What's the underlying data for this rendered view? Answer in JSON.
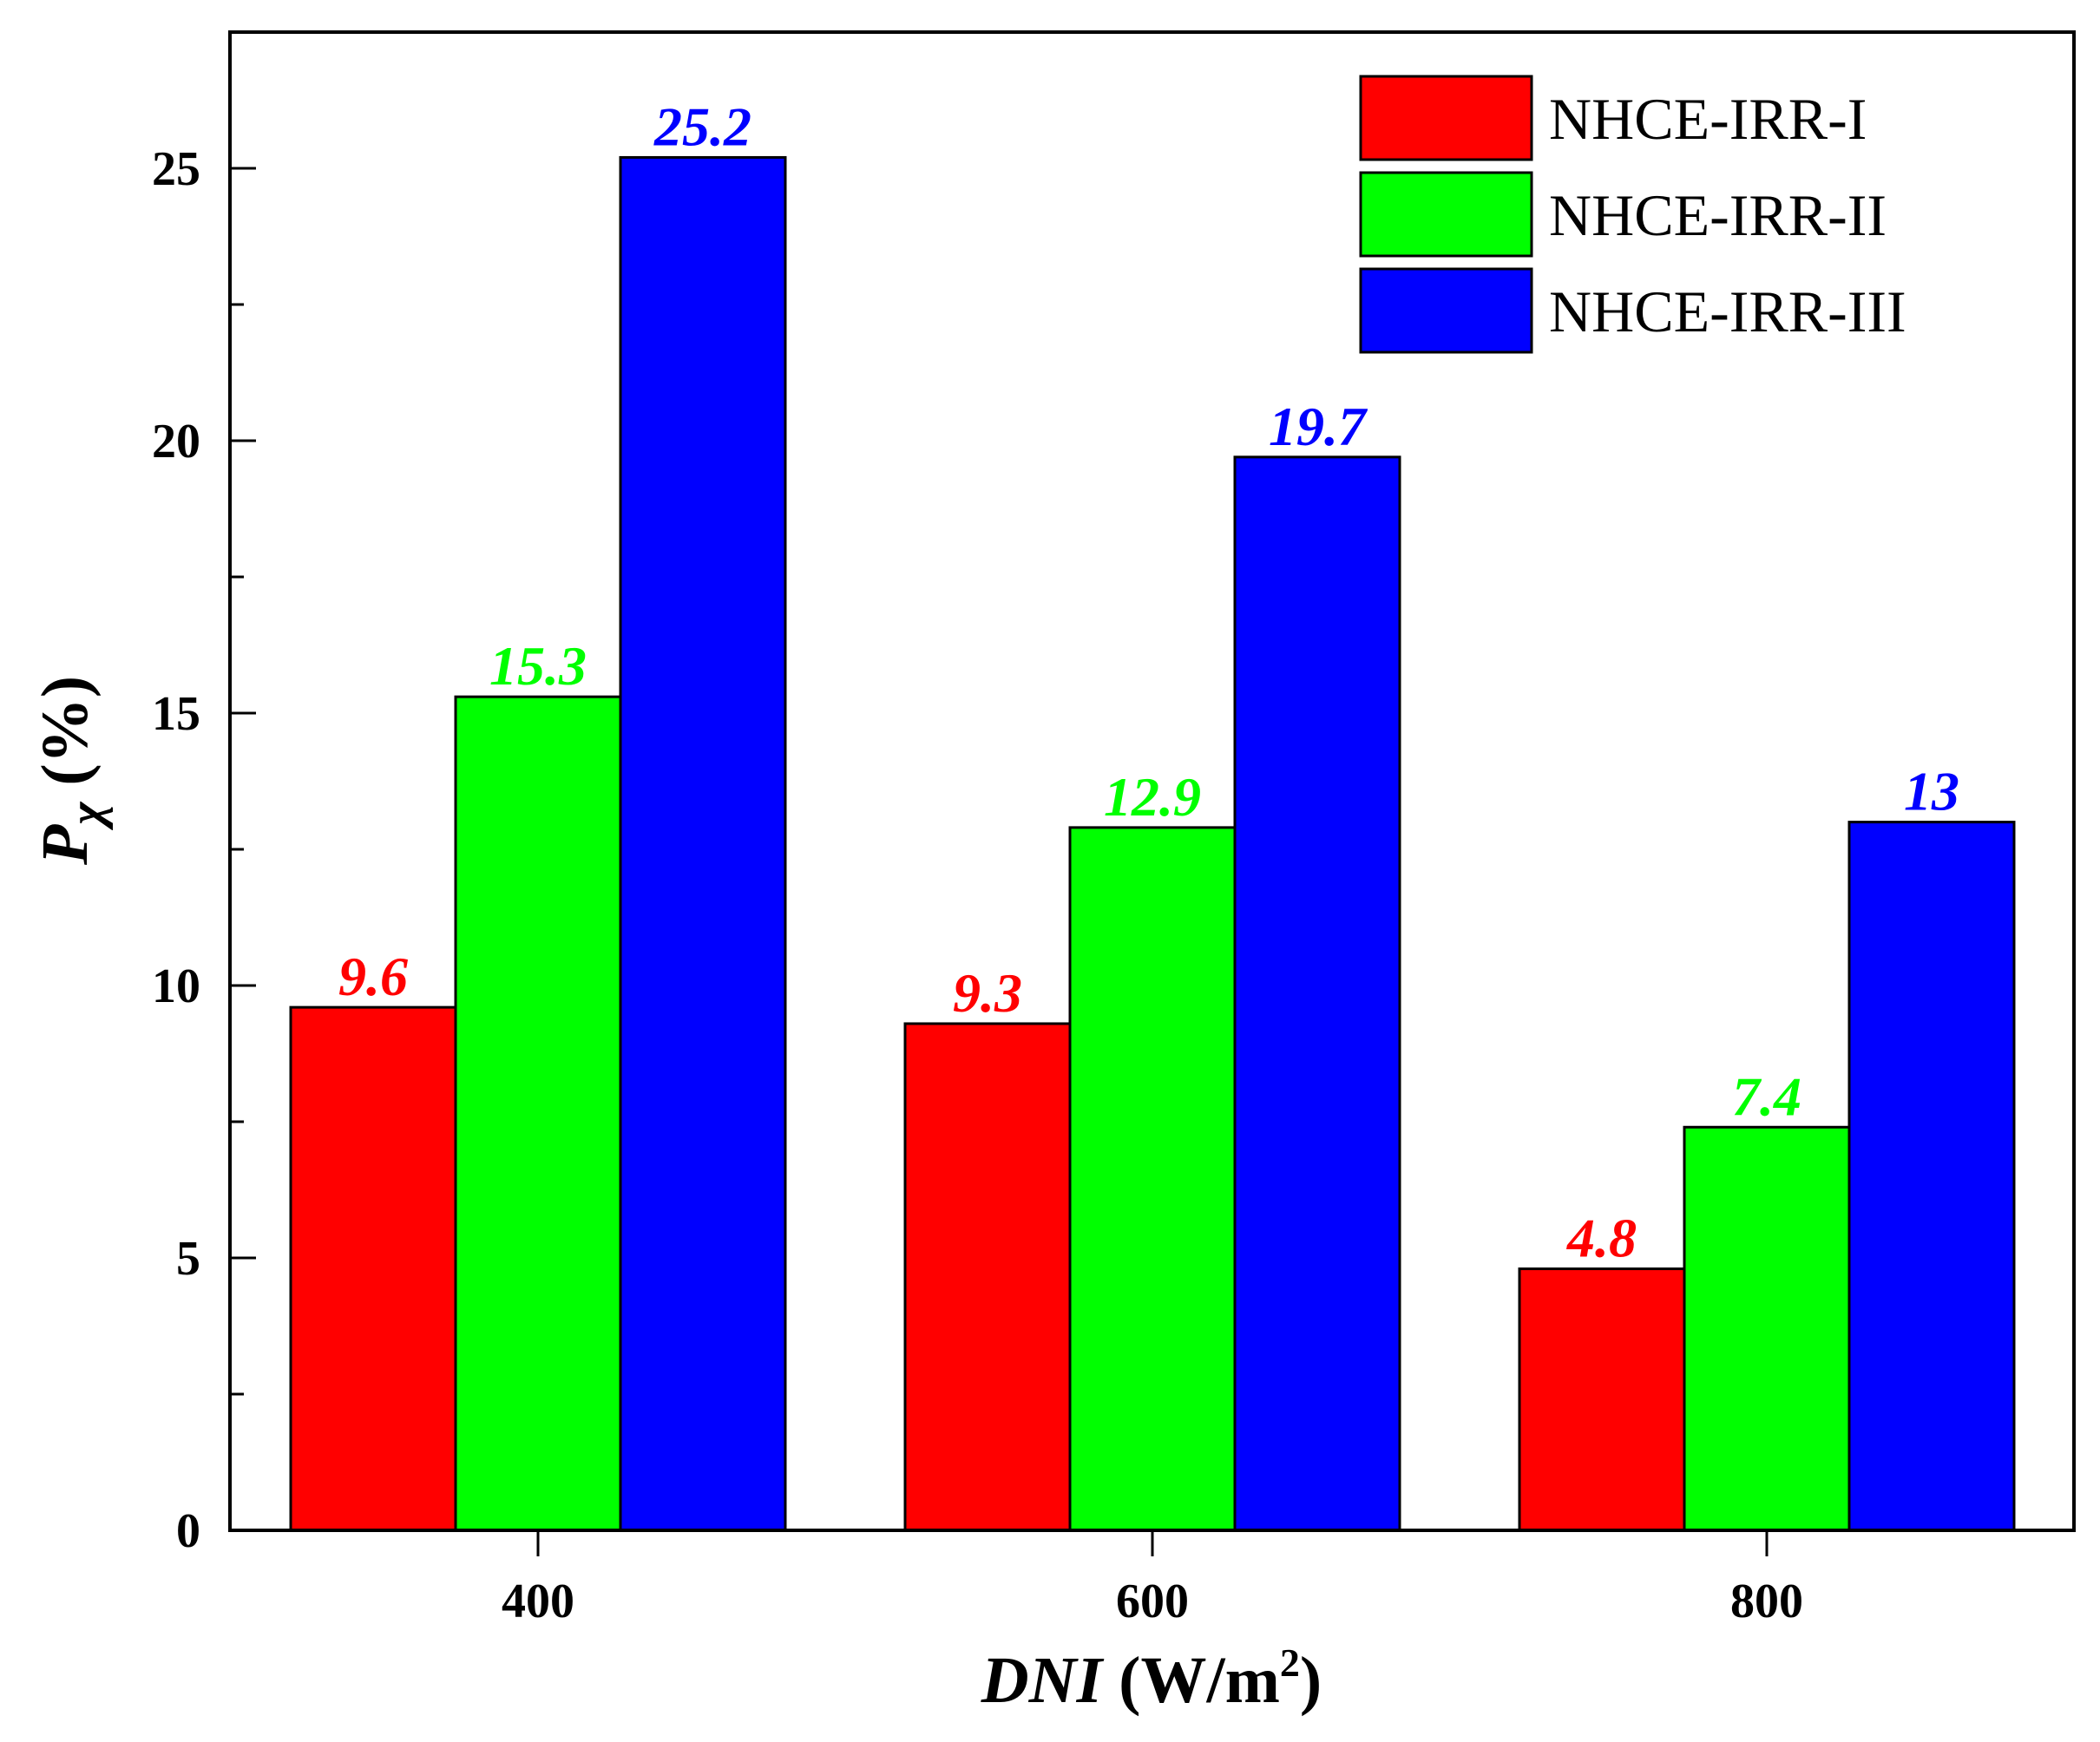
{
  "chart_data": {
    "type": "bar",
    "title": "",
    "categories": [
      "400",
      "600",
      "800"
    ],
    "series": [
      {
        "name": "NHCE-IRR-I",
        "color": "#ff0000",
        "values": [
          9.6,
          9.3,
          4.8
        ],
        "labels": [
          "9.6",
          "9.3",
          "4.8"
        ]
      },
      {
        "name": "NHCE-IRR-II",
        "color": "#00ff00",
        "values": [
          15.3,
          12.9,
          7.4
        ],
        "labels": [
          "15.3",
          "12.9",
          "7.4"
        ]
      },
      {
        "name": "NHCE-IRR-III",
        "color": "#0000ff",
        "values": [
          25.2,
          19.7,
          13
        ],
        "labels": [
          "25.2",
          "19.7",
          "13"
        ]
      }
    ],
    "xlabel": {
      "italic": "DNI",
      "rest": " (W/m",
      "sup": "2",
      "end": ")"
    },
    "ylabel": {
      "main": "P",
      "sub": "χ",
      "rest": " (%)"
    },
    "ylim": [
      0,
      27.5
    ],
    "yticks": [
      0,
      5,
      10,
      15,
      20,
      25
    ],
    "ytick_labels": [
      "0",
      "5",
      "10",
      "15",
      "20",
      "25"
    ],
    "grid": false,
    "legend_position": "top-right"
  }
}
